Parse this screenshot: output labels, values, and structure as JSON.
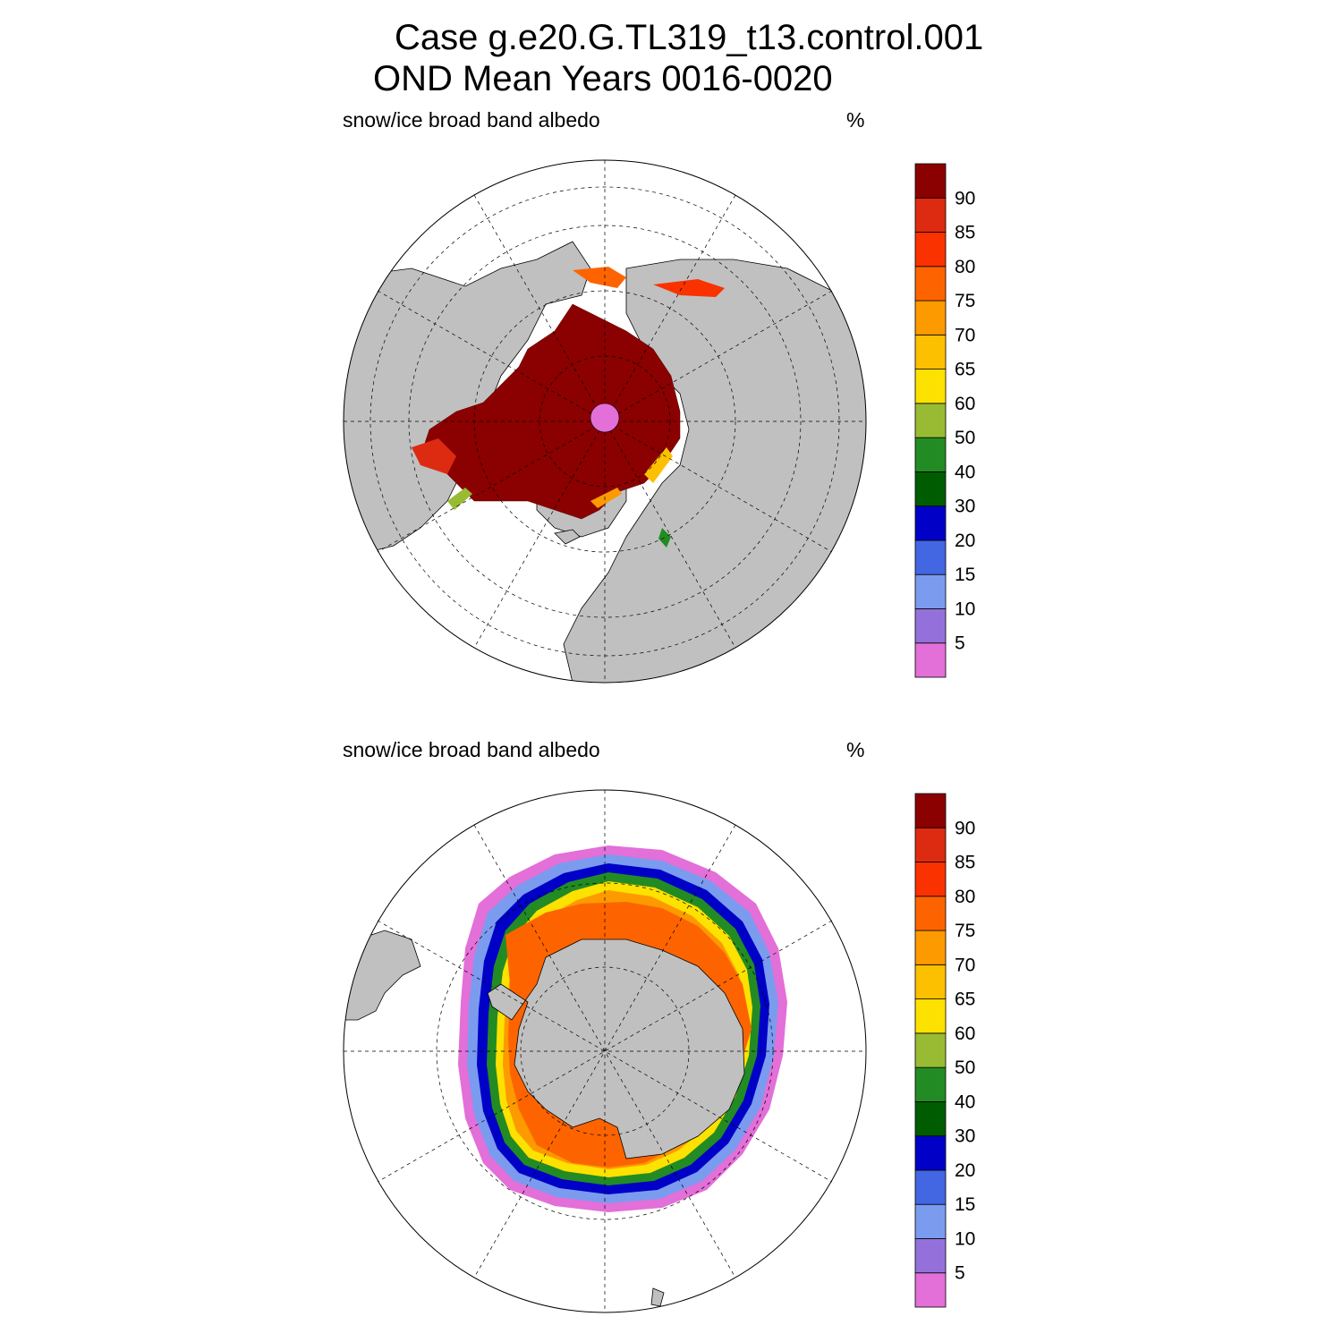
{
  "title": {
    "line1": "Case g.e20.G.TL319_t13.control.001",
    "line2": "OND Mean   Years 0016-0020"
  },
  "panels": [
    {
      "id": "north",
      "label": "snow/ice broad band albedo",
      "units": "%"
    },
    {
      "id": "south",
      "label": "snow/ice broad band albedo",
      "units": "%"
    }
  ],
  "colorbar": {
    "levels": [
      "5",
      "10",
      "15",
      "20",
      "30",
      "40",
      "50",
      "60",
      "65",
      "70",
      "75",
      "80",
      "85",
      "90"
    ],
    "colors": [
      "#e36fd8",
      "#9471da",
      "#7b9bef",
      "#4366e3",
      "#0000c7",
      "#005c00",
      "#238b23",
      "#99bb33",
      "#fde100",
      "#fdc000",
      "#fd9a00",
      "#fd6400",
      "#fa3200",
      "#dd2b12",
      "#8b0000"
    ]
  },
  "colors": {
    "land": "#c0c0c0",
    "ocean": "#ffffff",
    "pole_hole": "#e36fd8"
  }
}
